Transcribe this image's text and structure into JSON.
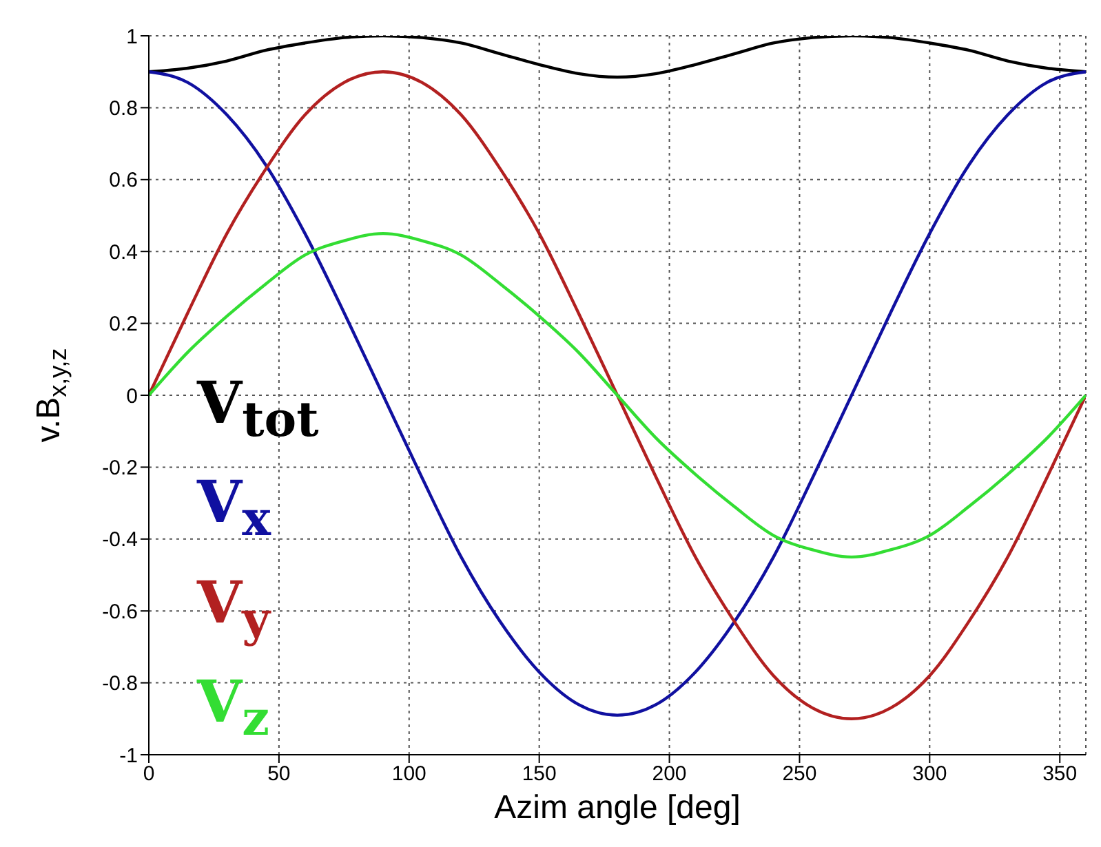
{
  "chart_data": {
    "type": "line",
    "xlabel": "Azim angle [deg]",
    "ylabel": "v.B$_{x,y,z}$",
    "x": [
      0,
      15,
      30,
      45,
      60,
      75,
      90,
      105,
      120,
      135,
      150,
      165,
      180,
      195,
      210,
      225,
      240,
      255,
      270,
      285,
      300,
      315,
      330,
      345,
      360
    ],
    "series": [
      {
        "name": "V$_{tot}$",
        "color": "#000000",
        "values": [
          0.9,
          0.91,
          0.93,
          0.96,
          0.98,
          0.995,
          1.0,
          0.995,
          0.98,
          0.95,
          0.92,
          0.895,
          0.885,
          0.895,
          0.92,
          0.95,
          0.98,
          0.995,
          1.0,
          0.995,
          0.98,
          0.96,
          0.93,
          0.91,
          0.9
        ]
      },
      {
        "name": "V$_{x}$",
        "color": "#1010a0",
        "values": [
          0.9,
          0.87,
          0.78,
          0.64,
          0.45,
          0.23,
          0,
          -0.23,
          -0.45,
          -0.63,
          -0.77,
          -0.86,
          -0.89,
          -0.86,
          -0.77,
          -0.63,
          -0.45,
          -0.23,
          0,
          0.23,
          0.45,
          0.64,
          0.78,
          0.87,
          0.9
        ]
      },
      {
        "name": "V$_{y}$",
        "color": "#b22020",
        "values": [
          0,
          0.23,
          0.45,
          0.63,
          0.78,
          0.87,
          0.9,
          0.87,
          0.78,
          0.63,
          0.45,
          0.23,
          0,
          -0.23,
          -0.45,
          -0.63,
          -0.78,
          -0.87,
          -0.9,
          -0.87,
          -0.78,
          -0.63,
          -0.45,
          -0.23,
          0
        ]
      },
      {
        "name": "V$_{z}$",
        "color": "#33dd33",
        "values": [
          0,
          0.12,
          0.22,
          0.31,
          0.39,
          0.43,
          0.45,
          0.43,
          0.39,
          0.31,
          0.22,
          0.12,
          0,
          -0.12,
          -0.22,
          -0.31,
          -0.39,
          -0.43,
          -0.45,
          -0.43,
          -0.39,
          -0.31,
          -0.22,
          -0.12,
          0
        ]
      }
    ],
    "xlim": [
      0,
      360
    ],
    "xticks": [
      0,
      50,
      100,
      150,
      200,
      250,
      300,
      350
    ],
    "ylim": [
      -1,
      1
    ],
    "yticks": [
      -1,
      -0.8,
      -0.6,
      -0.4,
      -0.2,
      0,
      0.2,
      0.4,
      0.6,
      0.8,
      1
    ],
    "grid": true,
    "legend": "left",
    "marker": "none",
    "line_style": "solid"
  }
}
